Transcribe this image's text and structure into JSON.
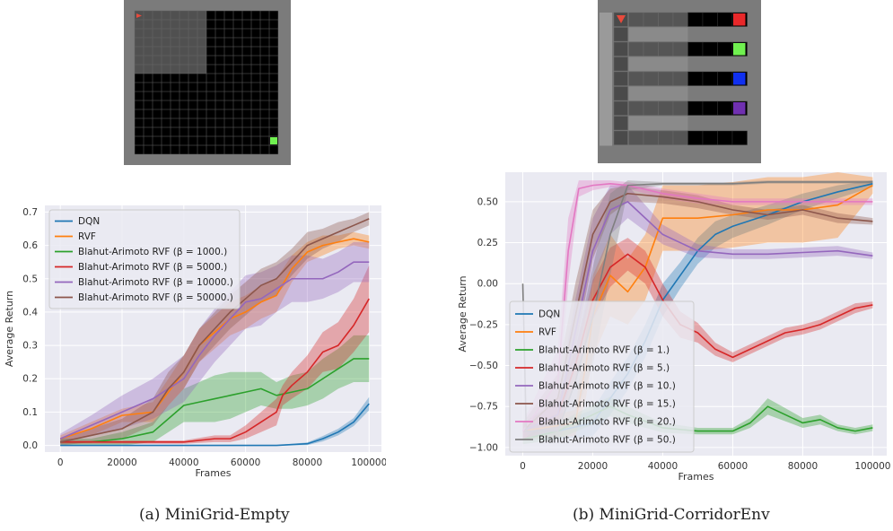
{
  "figures": [
    {
      "env": "MiniGrid-Empty",
      "caption": "(a) MiniGrid-Empty"
    },
    {
      "env": "MiniGrid-CorridorEnv",
      "caption": "(b) MiniGrid-CorridorEnv"
    }
  ],
  "env_colors": {
    "wall": "#7b7b7b",
    "floor": "#000000",
    "lit_floor": "#505050",
    "agent": "#e84a3c",
    "goal_green": "#70f050",
    "goal_red": "#e8282a",
    "goal_blue": "#1030f0",
    "goal_purple": "#7030b0"
  },
  "chart_data": [
    {
      "type": "line",
      "xlabel": "Frames",
      "ylabel": "Average Return",
      "xlim": [
        -5000,
        104000
      ],
      "ylim": [
        -0.02,
        0.72
      ],
      "xticks": [
        0,
        20000,
        40000,
        60000,
        80000,
        100000
      ],
      "yticks": [
        0.0,
        0.1,
        0.2,
        0.3,
        0.4,
        0.5,
        0.6,
        0.7
      ],
      "ytick_labels": [
        "0.0",
        "0.1",
        "0.2",
        "0.3",
        "0.4",
        "0.5",
        "0.6",
        "0.7"
      ],
      "grid": true,
      "legend_position": "top-left",
      "series": [
        {
          "name": "DQN",
          "color": "#1f77b4",
          "x": [
            0,
            20000,
            40000,
            60000,
            70000,
            80000,
            85000,
            90000,
            95000,
            100000
          ],
          "y": [
            0.0,
            0.0,
            0.0,
            0.0,
            0.0,
            0.005,
            0.02,
            0.04,
            0.07,
            0.125
          ],
          "band": [
            0.0,
            0.0,
            0.0,
            0.0,
            0.001,
            0.004,
            0.008,
            0.01,
            0.012,
            0.02
          ]
        },
        {
          "name": "RVF",
          "color": "#ff7f0e",
          "x": [
            0,
            10000,
            20000,
            30000,
            35000,
            40000,
            45000,
            50000,
            55000,
            60000,
            65000,
            70000,
            75000,
            80000,
            85000,
            90000,
            95000,
            100000
          ],
          "y": [
            0.02,
            0.05,
            0.09,
            0.1,
            0.16,
            0.22,
            0.3,
            0.34,
            0.38,
            0.4,
            0.43,
            0.45,
            0.53,
            0.58,
            0.6,
            0.61,
            0.62,
            0.61
          ],
          "band": [
            0.01,
            0.02,
            0.02,
            0.03,
            0.04,
            0.05,
            0.05,
            0.05,
            0.05,
            0.05,
            0.05,
            0.05,
            0.04,
            0.03,
            0.03,
            0.02,
            0.02,
            0.02
          ]
        },
        {
          "name": "Blahut-Arimoto RVF (β = 1000.)",
          "color": "#2ca02c",
          "x": [
            0,
            10000,
            20000,
            30000,
            35000,
            40000,
            45000,
            50000,
            55000,
            60000,
            65000,
            70000,
            75000,
            80000,
            85000,
            90000,
            95000,
            100000
          ],
          "y": [
            0.01,
            0.01,
            0.02,
            0.04,
            0.08,
            0.12,
            0.13,
            0.14,
            0.15,
            0.16,
            0.17,
            0.15,
            0.16,
            0.17,
            0.2,
            0.23,
            0.26,
            0.26
          ],
          "band": [
            0.01,
            0.01,
            0.02,
            0.03,
            0.04,
            0.05,
            0.06,
            0.07,
            0.07,
            0.06,
            0.05,
            0.04,
            0.05,
            0.05,
            0.06,
            0.06,
            0.07,
            0.07
          ]
        },
        {
          "name": "Blahut-Arimoto RVF (β = 5000.)",
          "color": "#d62728",
          "x": [
            0,
            20000,
            40000,
            50000,
            55000,
            60000,
            65000,
            70000,
            72000,
            75000,
            80000,
            85000,
            90000,
            95000,
            100000
          ],
          "y": [
            0.01,
            0.01,
            0.01,
            0.02,
            0.02,
            0.04,
            0.07,
            0.1,
            0.15,
            0.18,
            0.22,
            0.28,
            0.3,
            0.36,
            0.44
          ],
          "band": [
            0.005,
            0.005,
            0.005,
            0.01,
            0.01,
            0.02,
            0.03,
            0.04,
            0.03,
            0.04,
            0.05,
            0.06,
            0.07,
            0.08,
            0.1
          ]
        },
        {
          "name": "Blahut-Arimoto RVF (β = 10000.)",
          "color": "#9467bd",
          "x": [
            0,
            10000,
            20000,
            30000,
            40000,
            45000,
            50000,
            55000,
            60000,
            65000,
            70000,
            75000,
            80000,
            85000,
            90000,
            95000,
            100000
          ],
          "y": [
            0.02,
            0.06,
            0.1,
            0.14,
            0.2,
            0.27,
            0.33,
            0.38,
            0.43,
            0.44,
            0.47,
            0.5,
            0.5,
            0.5,
            0.52,
            0.55,
            0.55
          ],
          "band": [
            0.015,
            0.03,
            0.05,
            0.06,
            0.07,
            0.08,
            0.08,
            0.08,
            0.08,
            0.08,
            0.07,
            0.07,
            0.07,
            0.06,
            0.06,
            0.06,
            0.06
          ]
        },
        {
          "name": "Blahut-Arimoto RVF (β = 50000.)",
          "color": "#8c564b",
          "x": [
            0,
            10000,
            20000,
            30000,
            35000,
            40000,
            45000,
            50000,
            55000,
            60000,
            65000,
            70000,
            75000,
            80000,
            85000,
            90000,
            95000,
            100000
          ],
          "y": [
            0.01,
            0.03,
            0.05,
            0.1,
            0.17,
            0.22,
            0.3,
            0.35,
            0.4,
            0.44,
            0.48,
            0.5,
            0.55,
            0.6,
            0.62,
            0.64,
            0.66,
            0.68
          ],
          "band": [
            0.01,
            0.02,
            0.03,
            0.04,
            0.05,
            0.05,
            0.05,
            0.05,
            0.05,
            0.05,
            0.05,
            0.05,
            0.04,
            0.04,
            0.03,
            0.03,
            0.02,
            0.02
          ]
        }
      ]
    },
    {
      "type": "line",
      "xlabel": "Frames",
      "ylabel": "Average Return",
      "xlim": [
        -5000,
        104000
      ],
      "ylim": [
        -1.05,
        0.68
      ],
      "xticks": [
        0,
        20000,
        40000,
        60000,
        80000,
        100000
      ],
      "yticks": [
        -1.0,
        -0.75,
        -0.5,
        -0.25,
        0.0,
        0.25,
        0.5
      ],
      "ytick_labels": [
        "−1.00",
        "−0.75",
        "−0.50",
        "−0.25",
        "0.00",
        "0.25",
        "0.50"
      ],
      "grid": true,
      "legend_position": "bottom-left",
      "series": [
        {
          "name": "DQN",
          "color": "#1f77b4",
          "x": [
            0,
            10000,
            20000,
            25000,
            30000,
            35000,
            40000,
            45000,
            50000,
            55000,
            60000,
            70000,
            80000,
            90000,
            100000
          ],
          "y": [
            -0.9,
            -0.9,
            -0.85,
            -0.7,
            -0.55,
            -0.35,
            -0.1,
            0.05,
            0.2,
            0.3,
            0.35,
            0.42,
            0.5,
            0.56,
            0.61
          ],
          "band": [
            0.05,
            0.05,
            0.08,
            0.1,
            0.1,
            0.1,
            0.1,
            0.08,
            0.08,
            0.08,
            0.07,
            0.06,
            0.05,
            0.04,
            0.02
          ]
        },
        {
          "name": "RVF",
          "color": "#ff7f0e",
          "x": [
            0,
            15000,
            18000,
            20000,
            25000,
            30000,
            35000,
            40000,
            45000,
            50000,
            60000,
            70000,
            80000,
            90000,
            100000
          ],
          "y": [
            -0.9,
            -0.85,
            -0.5,
            -0.2,
            0.05,
            -0.05,
            0.1,
            0.4,
            0.4,
            0.4,
            0.42,
            0.45,
            0.45,
            0.48,
            0.6
          ],
          "band": [
            0.05,
            0.08,
            0.2,
            0.25,
            0.25,
            0.2,
            0.2,
            0.2,
            0.2,
            0.2,
            0.2,
            0.2,
            0.2,
            0.2,
            0.05
          ]
        },
        {
          "name": "Blahut-Arimoto RVF (β = 1.)",
          "color": "#2ca02c",
          "x": [
            0,
            10000,
            20000,
            25000,
            30000,
            40000,
            50000,
            60000,
            65000,
            70000,
            75000,
            80000,
            85000,
            90000,
            95000,
            100000
          ],
          "y": [
            -0.95,
            -0.9,
            -0.8,
            -0.75,
            -0.8,
            -0.88,
            -0.9,
            -0.9,
            -0.85,
            -0.75,
            -0.8,
            -0.85,
            -0.83,
            -0.88,
            -0.9,
            -0.88
          ],
          "band": [
            0.03,
            0.05,
            0.06,
            0.06,
            0.05,
            0.03,
            0.02,
            0.02,
            0.03,
            0.05,
            0.04,
            0.03,
            0.03,
            0.02,
            0.02,
            0.02
          ]
        },
        {
          "name": "Blahut-Arimoto RVF (β = 5.)",
          "color": "#d62728",
          "x": [
            0,
            10000,
            15000,
            20000,
            25000,
            30000,
            35000,
            40000,
            45000,
            50000,
            55000,
            60000,
            65000,
            70000,
            75000,
            80000,
            85000,
            90000,
            95000,
            100000
          ],
          "y": [
            -0.9,
            -0.8,
            -0.5,
            -0.1,
            0.1,
            0.18,
            0.1,
            -0.1,
            -0.25,
            -0.3,
            -0.4,
            -0.45,
            -0.4,
            -0.35,
            -0.3,
            -0.28,
            -0.25,
            -0.2,
            -0.15,
            -0.13
          ],
          "band": [
            0.05,
            0.08,
            0.1,
            0.12,
            0.12,
            0.1,
            0.1,
            0.1,
            0.08,
            0.06,
            0.04,
            0.03,
            0.03,
            0.03,
            0.03,
            0.03,
            0.03,
            0.03,
            0.03,
            0.02
          ]
        },
        {
          "name": "Blahut-Arimoto RVF (β = 10.)",
          "color": "#9467bd",
          "x": [
            0,
            10000,
            15000,
            20000,
            25000,
            30000,
            35000,
            40000,
            45000,
            50000,
            60000,
            70000,
            80000,
            90000,
            100000
          ],
          "y": [
            -0.9,
            -0.8,
            -0.3,
            0.2,
            0.45,
            0.5,
            0.4,
            0.3,
            0.25,
            0.2,
            0.18,
            0.18,
            0.19,
            0.2,
            0.17
          ],
          "band": [
            0.05,
            0.1,
            0.2,
            0.2,
            0.15,
            0.1,
            0.08,
            0.06,
            0.05,
            0.04,
            0.03,
            0.03,
            0.03,
            0.03,
            0.02
          ]
        },
        {
          "name": "Blahut-Arimoto RVF (β = 15.)",
          "color": "#8c564b",
          "x": [
            0,
            10000,
            15000,
            20000,
            25000,
            30000,
            40000,
            50000,
            60000,
            70000,
            80000,
            90000,
            100000
          ],
          "y": [
            -0.9,
            -0.7,
            -0.2,
            0.3,
            0.5,
            0.55,
            0.53,
            0.5,
            0.45,
            0.42,
            0.45,
            0.4,
            0.38
          ],
          "band": [
            0.05,
            0.15,
            0.2,
            0.15,
            0.08,
            0.05,
            0.04,
            0.04,
            0.03,
            0.03,
            0.03,
            0.03,
            0.02
          ]
        },
        {
          "name": "Blahut-Arimoto RVF (β = 20.)",
          "color": "#e377c2",
          "x": [
            0,
            10000,
            13000,
            16000,
            20000,
            25000,
            30000,
            40000,
            50000,
            60000,
            70000,
            80000,
            90000,
            100000
          ],
          "y": [
            -0.9,
            -0.6,
            0.2,
            0.58,
            0.6,
            0.61,
            0.6,
            0.55,
            0.52,
            0.5,
            0.5,
            0.5,
            0.5,
            0.5
          ],
          "band": [
            0.05,
            0.2,
            0.2,
            0.05,
            0.03,
            0.02,
            0.02,
            0.03,
            0.03,
            0.02,
            0.02,
            0.02,
            0.02,
            0.02
          ]
        },
        {
          "name": "Blahut-Arimoto RVF (β = 50.)",
          "color": "#7f7f7f",
          "x": [
            0,
            1000,
            2000,
            10000,
            15000,
            20000,
            25000,
            30000,
            40000,
            50000,
            60000,
            70000,
            80000,
            90000,
            100000
          ],
          "y": [
            0.0,
            -0.9,
            -0.9,
            -0.9,
            -0.6,
            -0.2,
            0.3,
            0.6,
            0.61,
            0.61,
            0.61,
            0.62,
            0.62,
            0.62,
            0.62
          ],
          "band": [
            0.0,
            0.02,
            0.03,
            0.05,
            0.2,
            0.3,
            0.25,
            0.03,
            0.01,
            0.01,
            0.01,
            0.01,
            0.01,
            0.01,
            0.01
          ]
        }
      ]
    }
  ]
}
